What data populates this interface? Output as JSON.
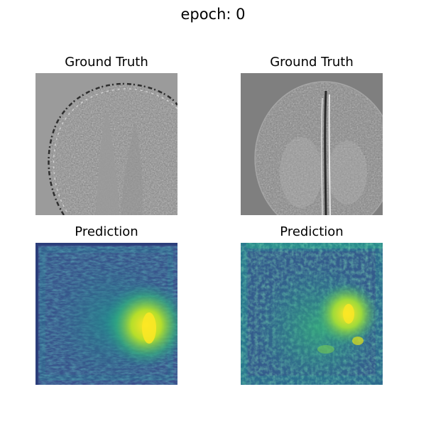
{
  "figure": {
    "suptitle": "epoch: 0"
  },
  "panels": [
    {
      "title": "Ground Truth",
      "colormap": "gray",
      "subject": "brain-mri-phase"
    },
    {
      "title": "Ground Truth",
      "colormap": "gray",
      "subject": "brain-mri-phase"
    },
    {
      "title": "Prediction",
      "colormap": "viridis",
      "subject": "predicted-map"
    },
    {
      "title": "Prediction",
      "colormap": "viridis",
      "subject": "predicted-map"
    }
  ],
  "colors": {
    "gt1_background": "#9b9b9b",
    "gt2_background": "#7f7f7f",
    "viridis_dark": "#3b4f8c",
    "viridis_mid": "#21908d",
    "viridis_light": "#5ec962",
    "viridis_peak": "#fde725"
  }
}
